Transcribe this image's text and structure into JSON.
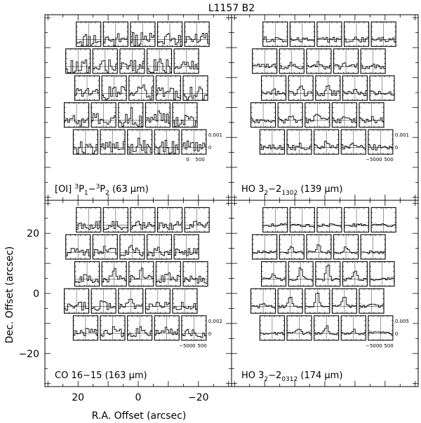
{
  "chart_data": {
    "type": "grid-spectra",
    "title": "L1157 B2",
    "xlabel": "R.A. Offset (arcsec)",
    "ylabel": "Dec. Offset (arcsec)",
    "x_ticks": [
      {
        "value": 20,
        "label": "20"
      },
      {
        "value": 0,
        "label": "0"
      },
      {
        "value": -20,
        "label": "−20"
      }
    ],
    "y_ticks": [
      {
        "value": 20,
        "label": "20"
      },
      {
        "value": 0,
        "label": "0"
      },
      {
        "value": -20,
        "label": "−20"
      }
    ],
    "xlim": [
      31,
      -31
    ],
    "ylim": [
      -31,
      31
    ],
    "panels": [
      {
        "id": "oi",
        "position": "top-left",
        "label_main": "[OI] ",
        "label_sup1": "3",
        "label_mid1": "P",
        "label_sub1": "1",
        "label_dash": "−",
        "label_sup2": "3",
        "label_mid2": "P",
        "label_sub2": "2",
        "label_tail": " (63 μm)",
        "scale_y": [
          "0.001",
          "0"
        ],
        "scale_x": [
          "0",
          "500"
        ],
        "noise": 0.9,
        "peak": 0.4
      },
      {
        "id": "h2o139",
        "position": "top-right",
        "label_main": "H",
        "label_sub1": "2",
        "label_mid1": "O 3",
        "label_sub2": "13",
        "label_dash": "−2",
        "label_sub3": "02",
        "label_tail": " (139 μm)",
        "scale_y": [
          "0.001",
          "0"
        ],
        "scale_x": [
          "−500",
          "0",
          "500"
        ],
        "noise": 0.35,
        "peak": 0.5
      },
      {
        "id": "co16",
        "position": "bottom-left",
        "label_main": "CO 16−15 (163 μm)",
        "scale_y": [
          "0.002",
          "0"
        ],
        "scale_x": [
          "−500",
          "0",
          "500"
        ],
        "noise": 0.55,
        "peak": 0.6
      },
      {
        "id": "h2o174",
        "position": "bottom-right",
        "label_main": "H",
        "label_sub1": "2",
        "label_mid1": "O 3",
        "label_sub2": "03",
        "label_dash": "−2",
        "label_sub3": "12",
        "label_tail": " (174 μm)",
        "scale_y": [
          "0.005",
          "0"
        ],
        "scale_x": [
          "−500",
          "0",
          "500"
        ],
        "noise": 0.2,
        "peak": 0.9
      }
    ],
    "spaxel_offsets_arcsec": [
      [
        16.5,
        24.5
      ],
      [
        7.5,
        24.5
      ],
      [
        -1.5,
        24.5
      ],
      [
        -10.5,
        24.5
      ],
      [
        -19.5,
        24.5
      ],
      [
        20.0,
        15.5
      ],
      [
        11.0,
        15.5
      ],
      [
        2.0,
        15.5
      ],
      [
        -7.0,
        15.5
      ],
      [
        -16.0,
        15.5
      ],
      [
        17.0,
        6.5
      ],
      [
        8.0,
        6.5
      ],
      [
        -1.0,
        6.5
      ],
      [
        -10.0,
        6.5
      ],
      [
        -19.0,
        6.5
      ],
      [
        20.5,
        -2.5
      ],
      [
        11.5,
        -2.5
      ],
      [
        2.5,
        -2.5
      ],
      [
        -6.5,
        -2.5
      ],
      [
        -15.5,
        -2.5
      ],
      [
        17.5,
        -11.5
      ],
      [
        8.5,
        -11.5
      ],
      [
        -0.5,
        -11.5
      ],
      [
        -9.5,
        -11.5
      ],
      [
        -18.5,
        -11.5
      ]
    ],
    "line_velocity_range_kms": [
      -500,
      500
    ]
  }
}
